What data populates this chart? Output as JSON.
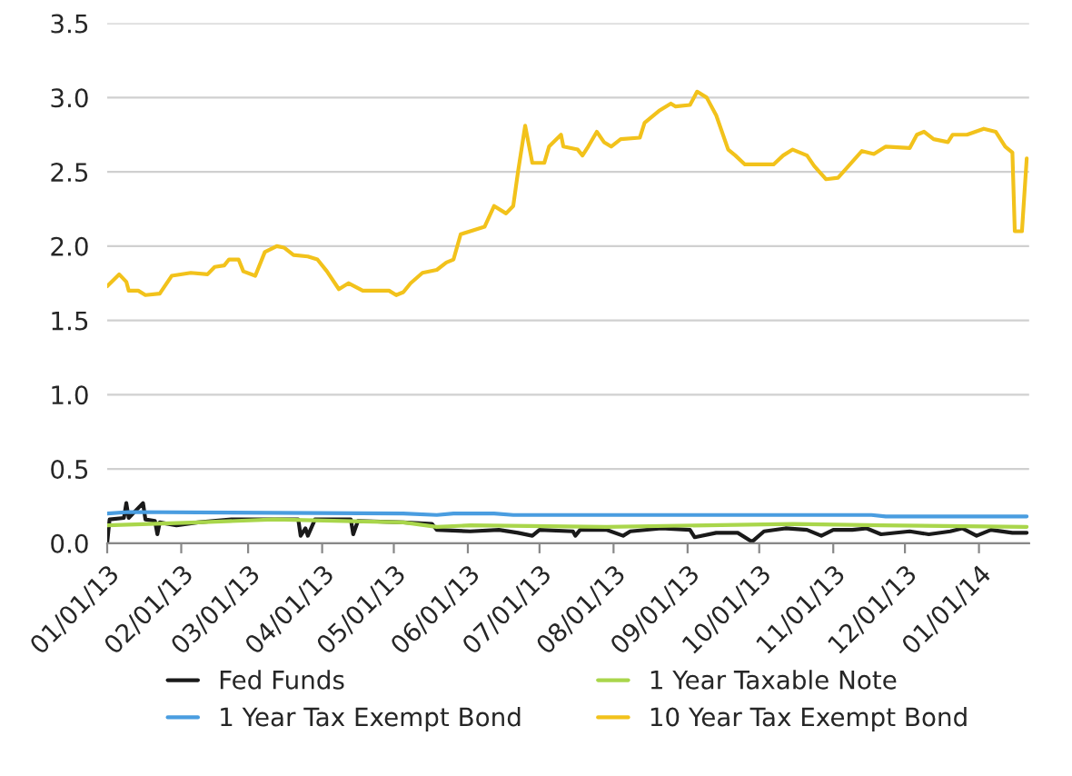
{
  "chart_data": {
    "type": "line",
    "xlim": [
      "2013-01-01",
      "2014-01-22"
    ],
    "xticks": [
      {
        "value": "2013-01-01",
        "label": "01/01/13"
      },
      {
        "value": "2013-02-01",
        "label": "02/01/13"
      },
      {
        "value": "2013-03-01",
        "label": "03/01/13"
      },
      {
        "value": "2013-04-01",
        "label": "04/01/13"
      },
      {
        "value": "2013-05-01",
        "label": "05/01/13"
      },
      {
        "value": "2013-06-01",
        "label": "06/01/13"
      },
      {
        "value": "2013-07-01",
        "label": "07/01/13"
      },
      {
        "value": "2013-08-01",
        "label": "08/01/13"
      },
      {
        "value": "2013-09-01",
        "label": "09/01/13"
      },
      {
        "value": "2013-10-01",
        "label": "10/01/13"
      },
      {
        "value": "2013-11-01",
        "label": "11/01/13"
      },
      {
        "value": "2013-12-01",
        "label": "12/01/13"
      },
      {
        "value": "2014-01-01",
        "label": "01/01/14"
      }
    ],
    "ylim": [
      0,
      3.5
    ],
    "yticks": [
      {
        "value": 0,
        "label": "0.0"
      },
      {
        "value": 0.5,
        "label": "0.5"
      },
      {
        "value": 1,
        "label": "1.0"
      },
      {
        "value": 1.5,
        "label": "1.5"
      },
      {
        "value": 2,
        "label": "2.0"
      },
      {
        "value": 2.5,
        "label": "2.5"
      },
      {
        "value": 3,
        "label": "3.0"
      },
      {
        "value": 3.5,
        "label": "3.5"
      }
    ],
    "grid": "y",
    "legend": "bottom",
    "marker": "none",
    "line_style": "solid",
    "series": [
      {
        "name": "Fed Funds",
        "color": "#1a1a1a",
        "x": [
          "2013-01-01",
          "2013-01-02",
          "2013-01-08",
          "2013-01-09",
          "2013-01-10",
          "2013-01-16",
          "2013-01-17",
          "2013-01-21",
          "2013-01-22",
          "2013-01-23",
          "2013-01-30",
          "2013-02-08",
          "2013-02-22",
          "2013-03-08",
          "2013-03-22",
          "2013-03-23",
          "2013-03-25",
          "2013-03-26",
          "2013-03-29",
          "2013-04-13",
          "2013-04-14",
          "2013-04-16",
          "2013-05-05",
          "2013-05-17",
          "2013-05-19",
          "2013-06-02",
          "2013-06-14",
          "2013-06-22",
          "2013-06-28",
          "2013-07-01",
          "2013-07-15",
          "2013-07-16",
          "2013-07-18",
          "2013-07-29",
          "2013-08-05",
          "2013-08-08",
          "2013-08-21",
          "2013-09-02",
          "2013-09-04",
          "2013-09-13",
          "2013-09-22",
          "2013-09-28",
          "2013-10-03",
          "2013-10-12",
          "2013-10-21",
          "2013-10-27",
          "2013-11-01",
          "2013-11-09",
          "2013-11-15",
          "2013-11-21",
          "2013-12-03",
          "2013-12-11",
          "2013-12-20",
          "2013-12-25",
          "2013-12-31",
          "2014-01-06",
          "2014-01-15",
          "2014-01-21"
        ],
        "values": [
          0.0,
          0.16,
          0.17,
          0.27,
          0.17,
          0.27,
          0.16,
          0.15,
          0.06,
          0.14,
          0.12,
          0.14,
          0.16,
          0.16,
          0.16,
          0.05,
          0.1,
          0.05,
          0.16,
          0.16,
          0.06,
          0.15,
          0.14,
          0.13,
          0.09,
          0.08,
          0.09,
          0.07,
          0.05,
          0.09,
          0.08,
          0.05,
          0.09,
          0.09,
          0.05,
          0.08,
          0.1,
          0.09,
          0.04,
          0.07,
          0.07,
          0.01,
          0.08,
          0.1,
          0.09,
          0.05,
          0.09,
          0.09,
          0.1,
          0.06,
          0.08,
          0.06,
          0.08,
          0.1,
          0.05,
          0.09,
          0.07,
          0.07
        ]
      },
      {
        "name": "1 Year Taxable Note",
        "color": "#a9d64b",
        "x": [
          "2013-01-01",
          "2013-02-08",
          "2013-03-12",
          "2013-05-05",
          "2013-05-19",
          "2013-06-02",
          "2013-07-29",
          "2013-10-15",
          "2013-11-21",
          "2014-01-21"
        ],
        "values": [
          0.12,
          0.14,
          0.16,
          0.14,
          0.11,
          0.12,
          0.11,
          0.13,
          0.12,
          0.11
        ]
      },
      {
        "name": "1 Year Tax Exempt Bond",
        "color": "#4a9de0",
        "x": [
          "2013-01-01",
          "2013-01-10",
          "2013-05-05",
          "2013-05-19",
          "2013-05-26",
          "2013-06-12",
          "2013-06-20",
          "2013-11-17",
          "2013-11-23",
          "2014-01-21"
        ],
        "values": [
          0.2,
          0.21,
          0.2,
          0.19,
          0.2,
          0.2,
          0.19,
          0.19,
          0.18,
          0.18
        ]
      },
      {
        "name": "10 Year Tax Exempt Bond",
        "color": "#f2c21b",
        "x": [
          "2013-01-01",
          "2013-01-06",
          "2013-01-09",
          "2013-01-10",
          "2013-01-14",
          "2013-01-17",
          "2013-01-23",
          "2013-01-28",
          "2013-02-05",
          "2013-02-12",
          "2013-02-15",
          "2013-02-19",
          "2013-02-21",
          "2013-02-25",
          "2013-02-27",
          "2013-03-04",
          "2013-03-08",
          "2013-03-13",
          "2013-03-16",
          "2013-03-20",
          "2013-03-26",
          "2013-03-30",
          "2013-04-03",
          "2013-04-08",
          "2013-04-12",
          "2013-04-18",
          "2013-04-29",
          "2013-05-02",
          "2013-05-05",
          "2013-05-08",
          "2013-05-13",
          "2013-05-19",
          "2013-05-23",
          "2013-05-26",
          "2013-05-29",
          "2013-06-02",
          "2013-06-08",
          "2013-06-12",
          "2013-06-17",
          "2013-06-20",
          "2013-06-22",
          "2013-06-25",
          "2013-06-28",
          "2013-07-03",
          "2013-07-05",
          "2013-07-10",
          "2013-07-11",
          "2013-07-17",
          "2013-07-19",
          "2013-07-21",
          "2013-07-25",
          "2013-07-28",
          "2013-07-31",
          "2013-08-04",
          "2013-08-12",
          "2013-08-14",
          "2013-08-20",
          "2013-08-25",
          "2013-08-27",
          "2013-09-02",
          "2013-09-05",
          "2013-09-09",
          "2013-09-13",
          "2013-09-18",
          "2013-09-21",
          "2013-09-25",
          "2013-10-01",
          "2013-10-07",
          "2013-10-11",
          "2013-10-15",
          "2013-10-21",
          "2013-10-24",
          "2013-10-29",
          "2013-11-03",
          "2013-11-08",
          "2013-11-13",
          "2013-11-18",
          "2013-11-23",
          "2013-12-03",
          "2013-12-06",
          "2013-12-09",
          "2013-12-13",
          "2013-12-19",
          "2013-12-21",
          "2013-12-27",
          "2014-01-03",
          "2014-01-08",
          "2014-01-12",
          "2014-01-15",
          "2014-01-16",
          "2014-01-19",
          "2014-01-21"
        ],
        "values": [
          1.73,
          1.81,
          1.76,
          1.7,
          1.7,
          1.67,
          1.68,
          1.8,
          1.82,
          1.81,
          1.86,
          1.87,
          1.91,
          1.91,
          1.83,
          1.8,
          1.96,
          2.0,
          1.99,
          1.94,
          1.93,
          1.91,
          1.83,
          1.71,
          1.75,
          1.7,
          1.7,
          1.67,
          1.69,
          1.75,
          1.82,
          1.84,
          1.89,
          1.91,
          2.08,
          2.1,
          2.13,
          2.27,
          2.22,
          2.27,
          2.5,
          2.81,
          2.56,
          2.56,
          2.67,
          2.75,
          2.67,
          2.65,
          2.61,
          2.66,
          2.77,
          2.7,
          2.67,
          2.72,
          2.73,
          2.83,
          2.91,
          2.96,
          2.94,
          2.95,
          3.04,
          3.0,
          2.88,
          2.65,
          2.61,
          2.55,
          2.55,
          2.55,
          2.61,
          2.65,
          2.61,
          2.54,
          2.45,
          2.46,
          2.55,
          2.64,
          2.62,
          2.67,
          2.66,
          2.75,
          2.77,
          2.72,
          2.7,
          2.75,
          2.75,
          2.79,
          2.77,
          2.67,
          2.63,
          2.1,
          2.1,
          2.59
        ]
      }
    ]
  }
}
